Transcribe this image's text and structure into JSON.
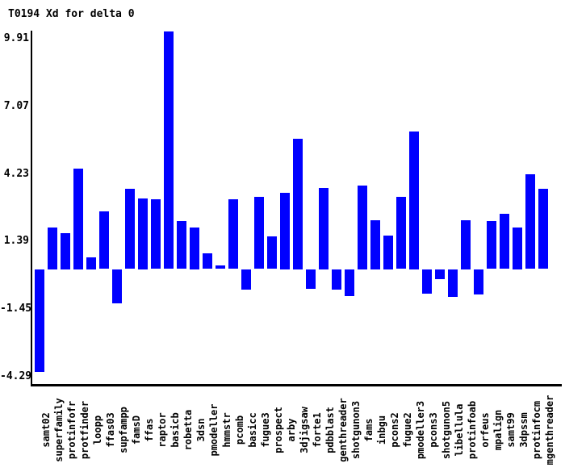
{
  "chart_data": {
    "type": "bar",
    "title": "T0194 Xd for delta 0",
    "categories": [
      "samt02",
      "superfamily",
      "protinfofr",
      "protfinder",
      "loopp",
      "ffas03",
      "supfampp",
      "famsD",
      "ffas",
      "raptor",
      "basicb",
      "robetta",
      "3dsn",
      "pmodeller",
      "hmmstr",
      "pcomb",
      "basicc",
      "fugue3",
      "prospect",
      "arby",
      "3djigsaw",
      "forte1",
      "pdbblast",
      "genthreader",
      "shotgunon3",
      "fams",
      "inbgu",
      "pcons2",
      "fugue2",
      "pmodeller3",
      "pcons3",
      "shotgunon5",
      "libellula",
      "protinfoab",
      "orfeus",
      "mpalign",
      "samt99",
      "3dpssm",
      "protinfocm",
      "mgenthreader"
    ],
    "values": [
      -4.29,
      1.75,
      1.5,
      4.2,
      0.5,
      2.4,
      -1.4,
      3.35,
      2.95,
      2.9,
      9.91,
      2.0,
      1.75,
      0.65,
      0.15,
      2.9,
      -0.85,
      3.0,
      1.35,
      3.2,
      5.45,
      -0.8,
      3.4,
      -0.85,
      -1.1,
      3.5,
      2.05,
      1.4,
      3.0,
      5.75,
      -1.0,
      -0.4,
      -1.15,
      2.05,
      -1.05,
      2.0,
      2.3,
      1.75,
      3.95,
      3.35
    ],
    "y_tick_labels": [
      "9.91",
      "7.07",
      "4.23",
      "1.39",
      "-1.45",
      "-4.29"
    ],
    "y_tick_values": [
      9.91,
      7.07,
      4.23,
      1.39,
      -1.45,
      -4.29
    ],
    "ylim": [
      -4.29,
      9.91
    ],
    "xlabel": "",
    "ylabel": "",
    "grid": false,
    "legend": false,
    "bar_color": "#0000ff",
    "axis_color": "#000000",
    "background_color": "#ffffff"
  }
}
